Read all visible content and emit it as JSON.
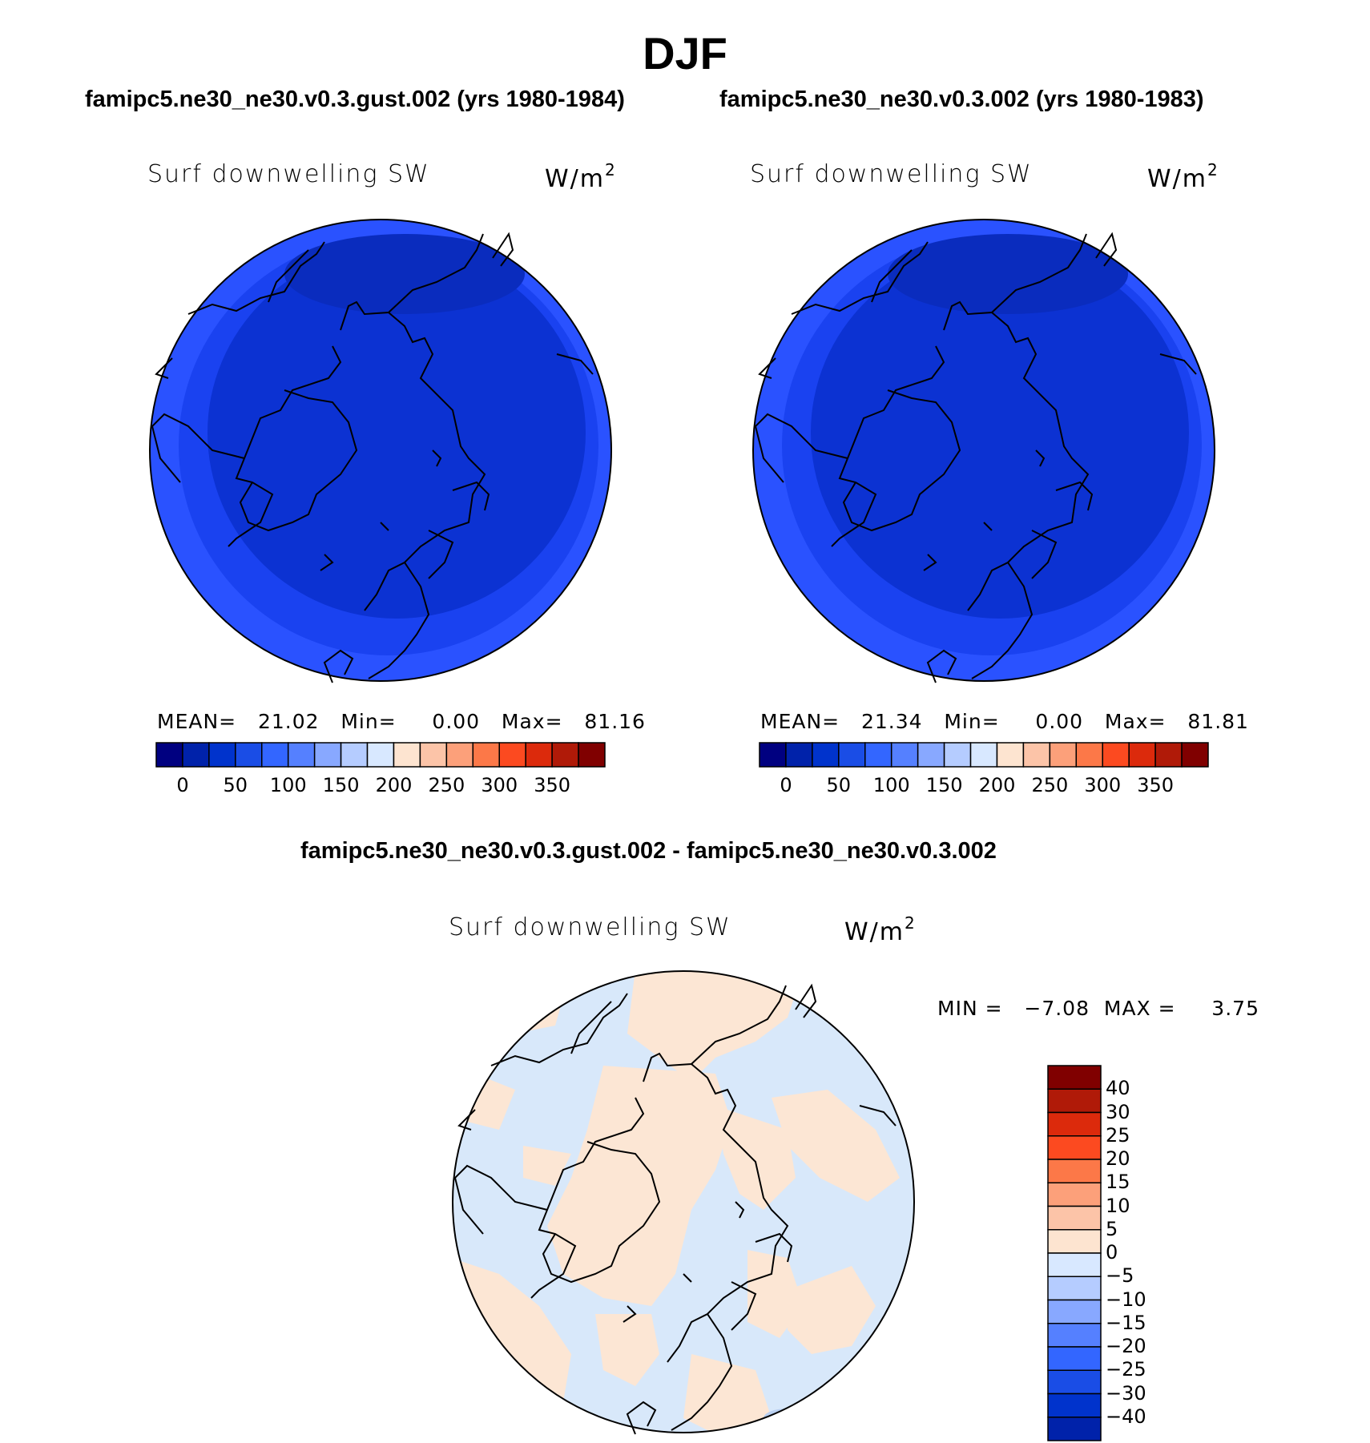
{
  "title": "DJF",
  "panels": [
    {
      "case_title": "famipc5.ne30_ne30.v0.3.gust.002 (yrs 1980-1984)",
      "variable": "Surf downwelling SW",
      "units_base": "W/m",
      "units_exp": "2",
      "stats": "MEAN=   21.02   Min=     0.00   Max=   81.16"
    },
    {
      "case_title": "famipc5.ne30_ne30.v0.3.002 (yrs 1980-1983)",
      "variable": "Surf downwelling SW",
      "units_base": "W/m",
      "units_exp": "2",
      "stats": "MEAN=   21.34   Min=     0.00   Max=   81.81"
    }
  ],
  "diff": {
    "title": "famipc5.ne30_ne30.v0.3.gust.002 - famipc5.ne30_ne30.v0.3.002",
    "variable": "Surf downwelling SW",
    "units_base": "W/m",
    "units_exp": "2",
    "stats": "MIN =   −7.08  MAX =     3.75"
  },
  "chart_data": [
    {
      "type": "heatmap",
      "projection": "north polar stereographic",
      "title": "Surf downwelling SW",
      "units": "W/m2",
      "mean": 21.02,
      "min": 0.0,
      "max": 81.16,
      "colorbar": {
        "orientation": "horizontal",
        "tick_labels": [
          "0",
          "50",
          "100",
          "150",
          "200",
          "250",
          "300",
          "350"
        ],
        "colors": [
          "#000080",
          "#0022aa",
          "#0033cc",
          "#1a4de6",
          "#3366ff",
          "#5580ff",
          "#88a8ff",
          "#b5ccff",
          "#d8e8ff",
          "#fde4d0",
          "#fcc4a8",
          "#fca07a",
          "#fc7848",
          "#fc4a20",
          "#dc2a0c",
          "#b01a08",
          "#800000"
        ]
      },
      "regions": [
        {
          "name": "polar cap",
          "value_range": [
            0,
            25
          ],
          "color": "#0a2ec8"
        },
        {
          "name": "mid band",
          "value_range": [
            25,
            50
          ],
          "color": "#1638e8"
        },
        {
          "name": "outer rim",
          "value_range": [
            50,
            100
          ],
          "color": "#2a52ff"
        }
      ]
    },
    {
      "type": "heatmap",
      "projection": "north polar stereographic",
      "title": "Surf downwelling SW",
      "units": "W/m2",
      "mean": 21.34,
      "min": 0.0,
      "max": 81.81,
      "colorbar": {
        "orientation": "horizontal",
        "tick_labels": [
          "0",
          "50",
          "100",
          "150",
          "200",
          "250",
          "300",
          "350"
        ],
        "colors": [
          "#000080",
          "#0022aa",
          "#0033cc",
          "#1a4de6",
          "#3366ff",
          "#5580ff",
          "#88a8ff",
          "#b5ccff",
          "#d8e8ff",
          "#fde4d0",
          "#fcc4a8",
          "#fca07a",
          "#fc7848",
          "#fc4a20",
          "#dc2a0c",
          "#b01a08",
          "#800000"
        ]
      },
      "regions": [
        {
          "name": "polar cap",
          "value_range": [
            0,
            25
          ],
          "color": "#0a2ec8"
        },
        {
          "name": "mid band",
          "value_range": [
            25,
            50
          ],
          "color": "#1638e8"
        },
        {
          "name": "outer rim",
          "value_range": [
            50,
            100
          ],
          "color": "#2a52ff"
        }
      ]
    },
    {
      "type": "heatmap",
      "projection": "north polar stereographic",
      "title": "Surf downwelling SW",
      "units": "W/m2",
      "min": -7.08,
      "max": 3.75,
      "colorbar": {
        "orientation": "vertical",
        "tick_labels": [
          "40",
          "30",
          "25",
          "20",
          "15",
          "10",
          "5",
          "0",
          "−5",
          "−10",
          "−15",
          "−20",
          "−25",
          "−30",
          "−40"
        ],
        "colors": [
          "#800000",
          "#b01a08",
          "#dc2a0c",
          "#fc4a20",
          "#fc7848",
          "#fca07a",
          "#fcc4a8",
          "#fde4d0",
          "#d8e8ff",
          "#b5ccff",
          "#88a8ff",
          "#5580ff",
          "#3366ff",
          "#1a4de6",
          "#0033cc",
          "#0022aa"
        ]
      },
      "regions": [
        {
          "name": "negative",
          "value_range": [
            -5,
            0
          ],
          "color": "#d8e8fa"
        },
        {
          "name": "positive",
          "value_range": [
            0,
            5
          ],
          "color": "#fce6d4"
        }
      ]
    }
  ]
}
